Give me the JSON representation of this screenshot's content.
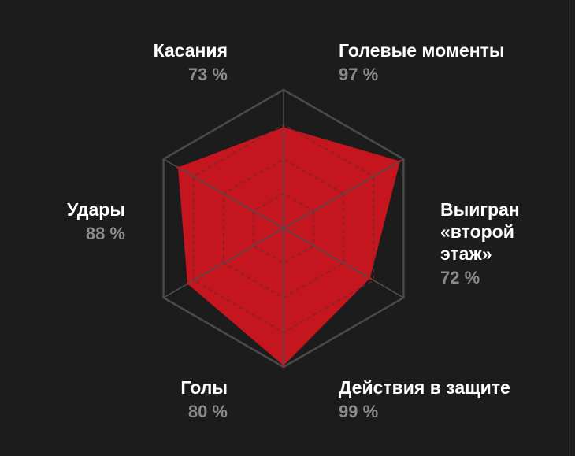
{
  "colors": {
    "background": "#1c1c1c",
    "fill": "#c5161f",
    "ring": "#4a4a4a",
    "grid": "#6a2a2e",
    "label": "#ffffff",
    "value": "#8a8a8a"
  },
  "chart_data": {
    "type": "radar",
    "range": [
      0,
      100
    ],
    "grid_levels": [
      25,
      50,
      75
    ],
    "axes": [
      "Голевые моменты",
      "Выигран «второй этаж»",
      "Действия в защите",
      "Голы",
      "Удары",
      "Касания"
    ],
    "values": [
      97,
      72,
      99,
      80,
      88,
      73
    ],
    "value_labels": [
      "97 %",
      "72 %",
      "99 %",
      "80 %",
      "88 %",
      "73 %"
    ],
    "label_lines": {
      "second_floor": [
        "Выигран",
        "«второй",
        "этаж»"
      ]
    }
  }
}
